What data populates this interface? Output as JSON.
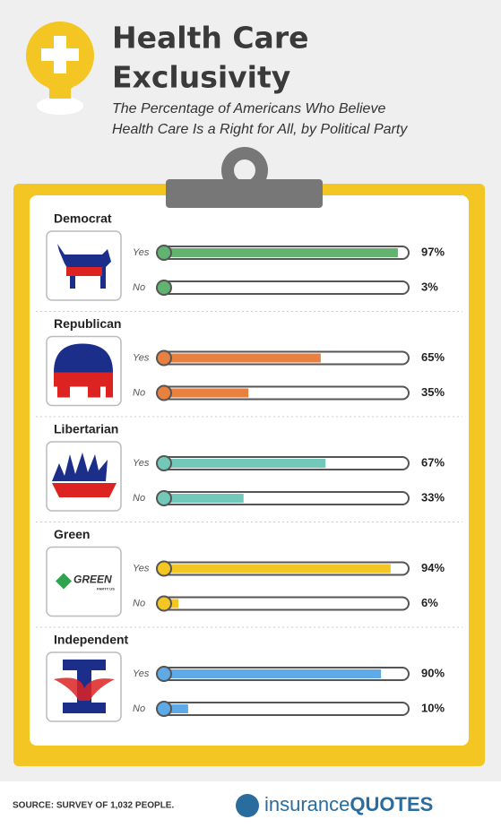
{
  "header": {
    "title_line1": "Health Care",
    "title_line2": "Exclusivity",
    "subtitle_line1": "The Percentage of Americans Who Believe",
    "subtitle_line2": "Health Care Is a Right for All, by Political Party"
  },
  "chart_data": [
    {
      "type": "thermometer",
      "title": "Democrat",
      "categories": [
        "Yes",
        "No"
      ],
      "values": [
        97,
        3
      ],
      "value_labels": [
        "97%",
        "3%"
      ],
      "color": "#62b36f",
      "xlim": [
        0,
        100
      ]
    },
    {
      "type": "thermometer",
      "title": "Republican",
      "categories": [
        "Yes",
        "No"
      ],
      "values": [
        65,
        35
      ],
      "value_labels": [
        "65%",
        "35%"
      ],
      "color": "#e8803f",
      "xlim": [
        0,
        100
      ]
    },
    {
      "type": "thermometer",
      "title": "Libertarian",
      "categories": [
        "Yes",
        "No"
      ],
      "values": [
        67,
        33
      ],
      "value_labels": [
        "67%",
        "33%"
      ],
      "color": "#72c9b9",
      "xlim": [
        0,
        100
      ]
    },
    {
      "type": "thermometer",
      "title": "Green",
      "categories": [
        "Yes",
        "No"
      ],
      "values": [
        94,
        6
      ],
      "value_labels": [
        "94%",
        "6%"
      ],
      "color": "#f3c623",
      "xlim": [
        0,
        100
      ]
    },
    {
      "type": "thermometer",
      "title": "Independent",
      "categories": [
        "Yes",
        "No"
      ],
      "values": [
        90,
        10
      ],
      "value_labels": [
        "90%",
        "10%"
      ],
      "color": "#5eaae6",
      "xlim": [
        0,
        100
      ]
    }
  ],
  "logos": {
    "green": "GREEN",
    "green_sub": "PARTY US"
  },
  "footer": {
    "source": "SOURCE: SURVEY OF 1,032 PEOPLE.",
    "brand_1": "insurance",
    "brand_2": "QUOTES"
  }
}
